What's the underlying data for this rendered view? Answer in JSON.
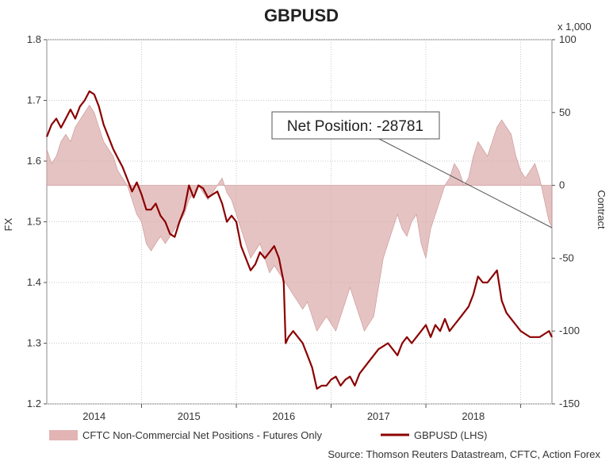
{
  "chart_data": {
    "type": "line",
    "title": "GBPUSD",
    "x_ticks": [
      "2014",
      "2015",
      "2016",
      "2017",
      "2018"
    ],
    "left_axis": {
      "label": "FX",
      "range": [
        1.2,
        1.8
      ],
      "ticks": [
        "1.8",
        "1.7",
        "1.6",
        "1.5",
        "1.4",
        "1.3",
        "1.2"
      ]
    },
    "right_axis": {
      "label": "Contract",
      "multiplier": "x 1,000",
      "range": [
        -150,
        100
      ],
      "ticks": [
        "100",
        "50",
        "0",
        "-50",
        "-100",
        "-150"
      ]
    },
    "x_range": [
      2013.5,
      2018.83
    ],
    "grid": true,
    "series": [
      {
        "name": "GBPUSD (LHS)",
        "kind": "line",
        "axis": "left",
        "color": "#8b0000",
        "points": [
          [
            2013.5,
            1.64
          ],
          [
            2013.55,
            1.66
          ],
          [
            2013.6,
            1.67
          ],
          [
            2013.65,
            1.655
          ],
          [
            2013.7,
            1.67
          ],
          [
            2013.75,
            1.685
          ],
          [
            2013.8,
            1.67
          ],
          [
            2013.85,
            1.69
          ],
          [
            2013.9,
            1.7
          ],
          [
            2013.95,
            1.715
          ],
          [
            2014.0,
            1.71
          ],
          [
            2014.05,
            1.69
          ],
          [
            2014.1,
            1.66
          ],
          [
            2014.15,
            1.64
          ],
          [
            2014.2,
            1.62
          ],
          [
            2014.25,
            1.605
          ],
          [
            2014.3,
            1.59
          ],
          [
            2014.35,
            1.57
          ],
          [
            2014.4,
            1.55
          ],
          [
            2014.45,
            1.565
          ],
          [
            2014.5,
            1.545
          ],
          [
            2014.55,
            1.52
          ],
          [
            2014.6,
            1.52
          ],
          [
            2014.65,
            1.53
          ],
          [
            2014.7,
            1.51
          ],
          [
            2014.75,
            1.5
          ],
          [
            2014.8,
            1.48
          ],
          [
            2014.85,
            1.475
          ],
          [
            2014.9,
            1.5
          ],
          [
            2014.95,
            1.52
          ],
          [
            2015.0,
            1.56
          ],
          [
            2015.05,
            1.54
          ],
          [
            2015.1,
            1.56
          ],
          [
            2015.15,
            1.555
          ],
          [
            2015.2,
            1.54
          ],
          [
            2015.25,
            1.545
          ],
          [
            2015.3,
            1.55
          ],
          [
            2015.35,
            1.53
          ],
          [
            2015.4,
            1.5
          ],
          [
            2015.45,
            1.51
          ],
          [
            2015.5,
            1.5
          ],
          [
            2015.55,
            1.46
          ],
          [
            2015.6,
            1.44
          ],
          [
            2015.65,
            1.42
          ],
          [
            2015.7,
            1.43
          ],
          [
            2015.75,
            1.45
          ],
          [
            2015.8,
            1.44
          ],
          [
            2015.85,
            1.45
          ],
          [
            2015.9,
            1.46
          ],
          [
            2015.95,
            1.44
          ],
          [
            2016.0,
            1.4
          ],
          [
            2016.02,
            1.3
          ],
          [
            2016.05,
            1.31
          ],
          [
            2016.1,
            1.32
          ],
          [
            2016.15,
            1.31
          ],
          [
            2016.2,
            1.3
          ],
          [
            2016.25,
            1.28
          ],
          [
            2016.3,
            1.26
          ],
          [
            2016.35,
            1.225
          ],
          [
            2016.4,
            1.23
          ],
          [
            2016.45,
            1.23
          ],
          [
            2016.5,
            1.24
          ],
          [
            2016.55,
            1.245
          ],
          [
            2016.6,
            1.23
          ],
          [
            2016.65,
            1.24
          ],
          [
            2016.7,
            1.245
          ],
          [
            2016.75,
            1.23
          ],
          [
            2016.8,
            1.25
          ],
          [
            2016.85,
            1.26
          ],
          [
            2016.9,
            1.27
          ],
          [
            2016.95,
            1.28
          ],
          [
            2017.0,
            1.29
          ],
          [
            2017.05,
            1.295
          ],
          [
            2017.1,
            1.3
          ],
          [
            2017.15,
            1.29
          ],
          [
            2017.2,
            1.28
          ],
          [
            2017.25,
            1.3
          ],
          [
            2017.3,
            1.31
          ],
          [
            2017.35,
            1.3
          ],
          [
            2017.4,
            1.31
          ],
          [
            2017.45,
            1.32
          ],
          [
            2017.5,
            1.33
          ],
          [
            2017.55,
            1.31
          ],
          [
            2017.6,
            1.33
          ],
          [
            2017.65,
            1.32
          ],
          [
            2017.7,
            1.34
          ],
          [
            2017.75,
            1.32
          ],
          [
            2017.8,
            1.33
          ],
          [
            2017.85,
            1.34
          ],
          [
            2017.9,
            1.35
          ],
          [
            2017.95,
            1.36
          ],
          [
            2018.0,
            1.38
          ],
          [
            2018.05,
            1.41
          ],
          [
            2018.1,
            1.4
          ],
          [
            2018.15,
            1.4
          ],
          [
            2018.2,
            1.41
          ],
          [
            2018.25,
            1.42
          ],
          [
            2018.3,
            1.37
          ],
          [
            2018.35,
            1.35
          ],
          [
            2018.4,
            1.34
          ],
          [
            2018.45,
            1.33
          ],
          [
            2018.5,
            1.32
          ],
          [
            2018.55,
            1.315
          ],
          [
            2018.6,
            1.31
          ],
          [
            2018.65,
            1.31
          ],
          [
            2018.7,
            1.31
          ],
          [
            2018.75,
            1.315
          ],
          [
            2018.8,
            1.32
          ],
          [
            2018.83,
            1.31
          ]
        ]
      },
      {
        "name": "CFTC Non-Commercial Net Positions - Futures Only",
        "kind": "area",
        "axis": "right",
        "color": "#d9a3a3",
        "points": [
          [
            2013.5,
            25
          ],
          [
            2013.55,
            15
          ],
          [
            2013.6,
            20
          ],
          [
            2013.65,
            30
          ],
          [
            2013.7,
            35
          ],
          [
            2013.75,
            30
          ],
          [
            2013.8,
            40
          ],
          [
            2013.85,
            45
          ],
          [
            2013.9,
            50
          ],
          [
            2013.95,
            55
          ],
          [
            2014.0,
            50
          ],
          [
            2014.05,
            40
          ],
          [
            2014.1,
            30
          ],
          [
            2014.15,
            25
          ],
          [
            2014.2,
            20
          ],
          [
            2014.25,
            10
          ],
          [
            2014.3,
            5
          ],
          [
            2014.35,
            0
          ],
          [
            2014.4,
            -10
          ],
          [
            2014.45,
            -20
          ],
          [
            2014.5,
            -25
          ],
          [
            2014.55,
            -40
          ],
          [
            2014.6,
            -45
          ],
          [
            2014.65,
            -40
          ],
          [
            2014.7,
            -35
          ],
          [
            2014.75,
            -40
          ],
          [
            2014.8,
            -35
          ],
          [
            2014.85,
            -30
          ],
          [
            2014.9,
            -25
          ],
          [
            2014.95,
            -20
          ],
          [
            2015.0,
            -10
          ],
          [
            2015.05,
            -5
          ],
          [
            2015.1,
            0
          ],
          [
            2015.15,
            -5
          ],
          [
            2015.2,
            -10
          ],
          [
            2015.25,
            -5
          ],
          [
            2015.3,
            0
          ],
          [
            2015.35,
            5
          ],
          [
            2015.4,
            -5
          ],
          [
            2015.45,
            -10
          ],
          [
            2015.5,
            -20
          ],
          [
            2015.55,
            -30
          ],
          [
            2015.6,
            -40
          ],
          [
            2015.65,
            -50
          ],
          [
            2015.7,
            -45
          ],
          [
            2015.75,
            -40
          ],
          [
            2015.8,
            -50
          ],
          [
            2015.85,
            -60
          ],
          [
            2015.9,
            -55
          ],
          [
            2015.95,
            -60
          ],
          [
            2016.0,
            -65
          ],
          [
            2016.05,
            -70
          ],
          [
            2016.1,
            -75
          ],
          [
            2016.15,
            -80
          ],
          [
            2016.2,
            -85
          ],
          [
            2016.25,
            -80
          ],
          [
            2016.3,
            -90
          ],
          [
            2016.35,
            -100
          ],
          [
            2016.4,
            -95
          ],
          [
            2016.45,
            -90
          ],
          [
            2016.5,
            -95
          ],
          [
            2016.55,
            -100
          ],
          [
            2016.6,
            -90
          ],
          [
            2016.65,
            -80
          ],
          [
            2016.7,
            -70
          ],
          [
            2016.75,
            -80
          ],
          [
            2016.8,
            -90
          ],
          [
            2016.85,
            -100
          ],
          [
            2016.9,
            -95
          ],
          [
            2016.95,
            -90
          ],
          [
            2017.0,
            -70
          ],
          [
            2017.05,
            -50
          ],
          [
            2017.1,
            -40
          ],
          [
            2017.15,
            -30
          ],
          [
            2017.2,
            -20
          ],
          [
            2017.25,
            -30
          ],
          [
            2017.3,
            -35
          ],
          [
            2017.35,
            -25
          ],
          [
            2017.4,
            -20
          ],
          [
            2017.45,
            -40
          ],
          [
            2017.5,
            -50
          ],
          [
            2017.55,
            -30
          ],
          [
            2017.6,
            -20
          ],
          [
            2017.65,
            -10
          ],
          [
            2017.7,
            0
          ],
          [
            2017.75,
            5
          ],
          [
            2017.8,
            15
          ],
          [
            2017.85,
            10
          ],
          [
            2017.9,
            0
          ],
          [
            2017.95,
            5
          ],
          [
            2018.0,
            20
          ],
          [
            2018.05,
            30
          ],
          [
            2018.1,
            25
          ],
          [
            2018.15,
            20
          ],
          [
            2018.2,
            30
          ],
          [
            2018.25,
            40
          ],
          [
            2018.3,
            45
          ],
          [
            2018.35,
            40
          ],
          [
            2018.4,
            35
          ],
          [
            2018.45,
            20
          ],
          [
            2018.5,
            10
          ],
          [
            2018.55,
            5
          ],
          [
            2018.6,
            10
          ],
          [
            2018.65,
            15
          ],
          [
            2018.7,
            5
          ],
          [
            2018.75,
            -10
          ],
          [
            2018.8,
            -25
          ],
          [
            2018.83,
            -28.781
          ]
        ]
      }
    ],
    "annotation": {
      "text": "Net Position: -28781",
      "value": -28.781
    },
    "legend_position": "bottom",
    "source": "Source: Thomson Reuters Datastream, CFTC, Action Forex"
  }
}
